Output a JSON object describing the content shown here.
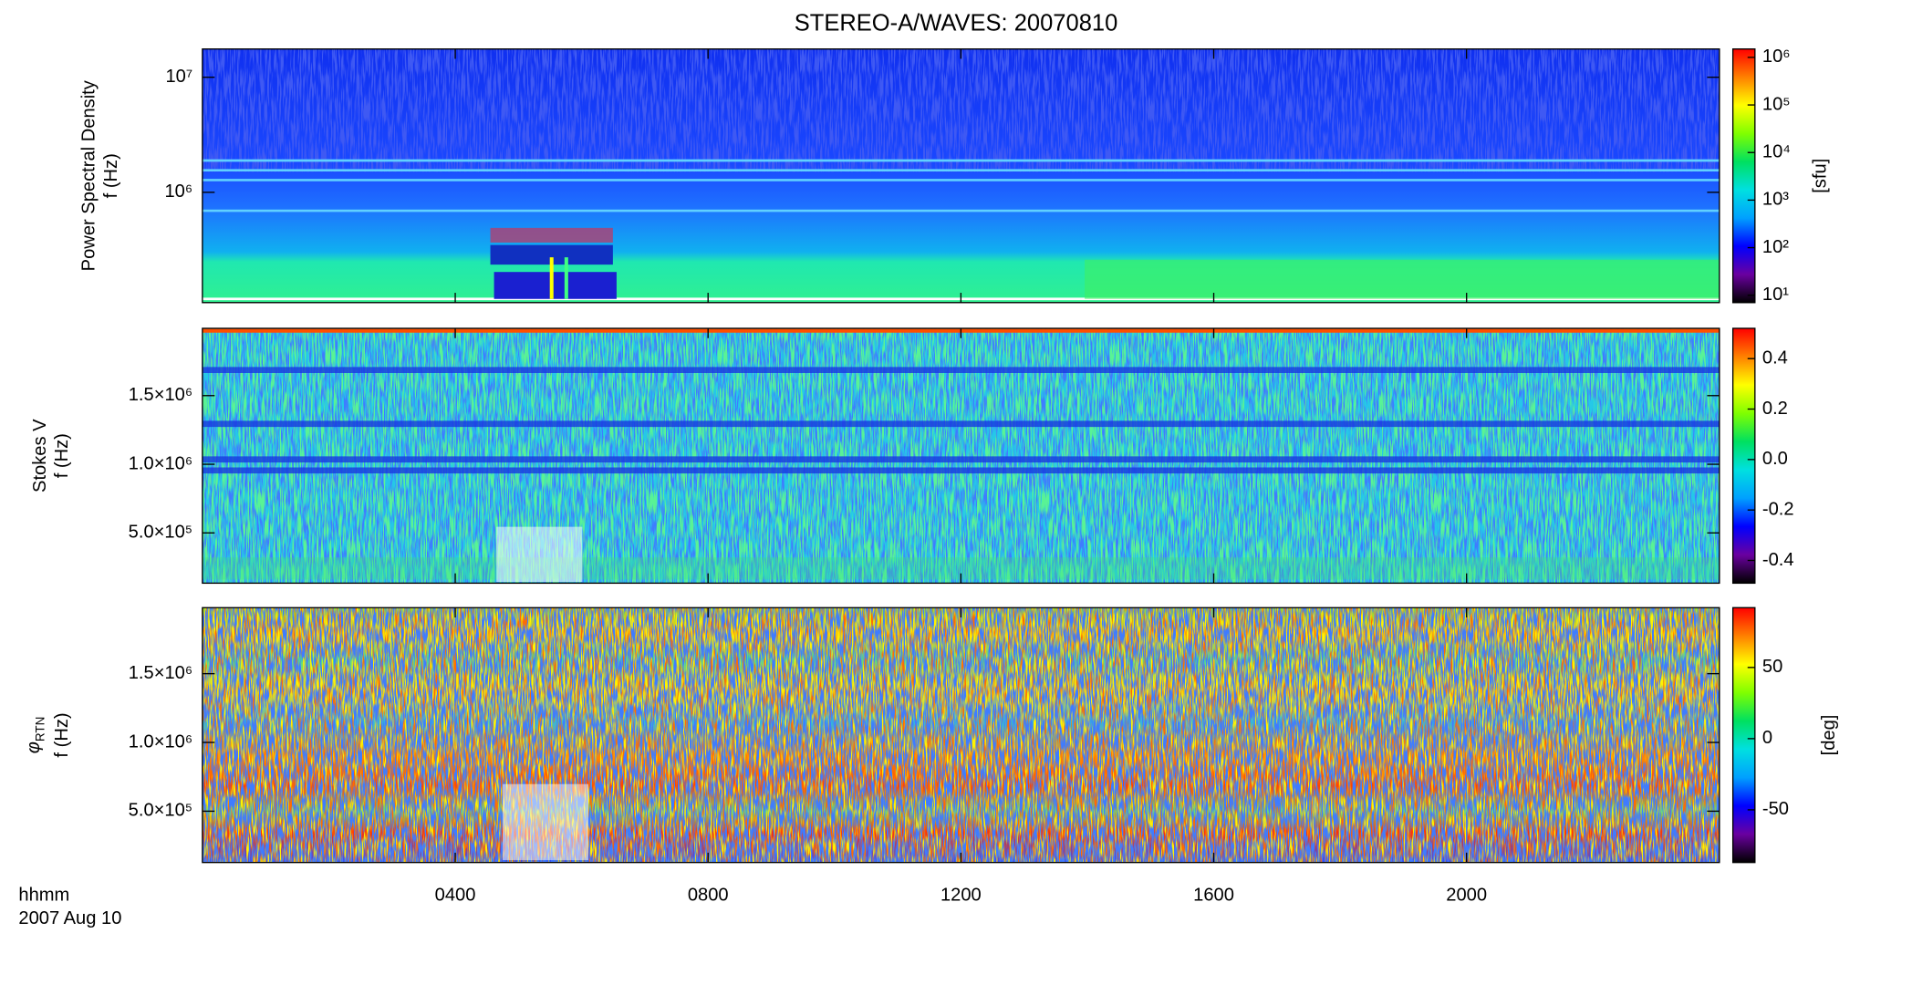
{
  "title": "STEREO-A/WAVES: 20070810",
  "x_axis": {
    "label": "hhmm",
    "date": "2007 Aug 10",
    "xlim": [
      0,
      24
    ],
    "xticks": [
      {
        "value": 4,
        "label": "0400"
      },
      {
        "value": 8,
        "label": "0800"
      },
      {
        "value": 12,
        "label": "1200"
      },
      {
        "value": 16,
        "label": "1600"
      },
      {
        "value": 20,
        "label": "2000"
      }
    ]
  },
  "colormap": [
    "#000000",
    "#6a00a0",
    "#0000ff",
    "#00a0ff",
    "#00e0e0",
    "#00e060",
    "#80ff00",
    "#ffff00",
    "#ff8000",
    "#ff0000"
  ],
  "chart_data": [
    {
      "type": "heatmap",
      "ylabel": "Power Spectral Density",
      "ylabel_unit": "f (Hz)",
      "log": true,
      "ylim": [
        110000,
        17600000
      ],
      "yticks": [
        {
          "value": 1000000,
          "label": "10⁶"
        },
        {
          "value": 10000000,
          "label": "10⁷"
        }
      ],
      "colorbar": {
        "label": "[sfu]",
        "log": true,
        "clim": [
          7,
          1500000
        ],
        "ticks": [
          {
            "value": 10,
            "label": "10¹"
          },
          {
            "value": 100,
            "label": "10²"
          },
          {
            "value": 1000,
            "label": "10³"
          },
          {
            "value": 10000,
            "label": "10⁴"
          },
          {
            "value": 100000,
            "label": "10⁵"
          },
          {
            "value": 1000000,
            "label": "10⁶"
          }
        ]
      }
    },
    {
      "type": "heatmap",
      "ylabel": "Stokes V",
      "ylabel_unit": "f (Hz)",
      "log": false,
      "ylim": [
        134000,
        1990000
      ],
      "yticks": [
        {
          "value": 500000,
          "label": "5.0×10⁵"
        },
        {
          "value": 1000000,
          "label": "1.0×10⁶"
        },
        {
          "value": 1500000,
          "label": "1.5×10⁶"
        }
      ],
      "colorbar": {
        "log": false,
        "clim": [
          -0.49,
          0.52
        ],
        "ticks": [
          -0.4,
          -0.2,
          {
            "value": 0,
            "label": "0.0"
          },
          0.2,
          0.4
        ]
      }
    },
    {
      "type": "heatmap",
      "ylabel_symbol": "φ",
      "ylabel_subscript": "RTN",
      "ylabel_unit": "f (Hz)",
      "log": false,
      "ylim": [
        127000,
        1980000
      ],
      "yticks": [
        {
          "value": 500000,
          "label": "5.0×10⁵"
        },
        {
          "value": 1000000,
          "label": "1.0×10⁶"
        },
        {
          "value": 1500000,
          "label": "1.5×10⁶"
        }
      ],
      "colorbar": {
        "label": "[deg]",
        "log": false,
        "clim": [
          -87,
          92
        ],
        "ticks": [
          -50,
          0,
          50
        ]
      }
    }
  ]
}
